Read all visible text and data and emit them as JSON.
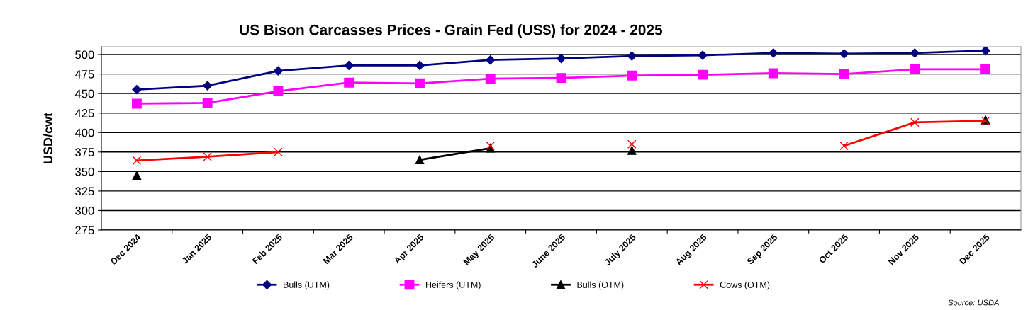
{
  "chart_data": {
    "type": "line",
    "title": "US Bison Carcasses Prices - Grain Fed (US$) for 2024 - 2025",
    "ylabel": "USD/cwt",
    "categories": [
      "Dec 2024",
      "Jan 2025",
      "Feb 2025",
      "Mar 2025",
      "Apr 2025",
      "May 2025",
      "June 2025",
      "July 2025",
      "Aug 2025",
      "Sep 2025",
      "Oct 2025",
      "Nov 2025",
      "Dec 2025"
    ],
    "series": [
      {
        "name": "Bulls (UTM)",
        "color": "#000080",
        "marker": "diamond",
        "values": [
          455,
          460,
          479,
          486,
          486,
          493,
          495,
          498,
          499,
          502,
          501,
          502,
          505
        ]
      },
      {
        "name": "Heifers (UTM)",
        "color": "#ff00ff",
        "marker": "square",
        "values": [
          437,
          438,
          453,
          464,
          463,
          469,
          470,
          473,
          474,
          476,
          475,
          481,
          481
        ]
      },
      {
        "name": "Bulls (OTM)",
        "color": "#000000",
        "marker": "triangle",
        "values": [
          345,
          null,
          null,
          null,
          365,
          380,
          null,
          377,
          null,
          null,
          null,
          null,
          416
        ]
      },
      {
        "name": "Cows (OTM)",
        "color": "#ff0000",
        "marker": "cross",
        "values": [
          364,
          369,
          375,
          null,
          null,
          383,
          null,
          385,
          null,
          null,
          383,
          413,
          415
        ]
      }
    ],
    "ylim": [
      275,
      510
    ],
    "yticks": [
      275,
      300,
      325,
      350,
      375,
      400,
      425,
      450,
      475,
      500
    ],
    "grid": "y",
    "legend": "bottom",
    "annotations": [
      "Source: USDA"
    ]
  }
}
